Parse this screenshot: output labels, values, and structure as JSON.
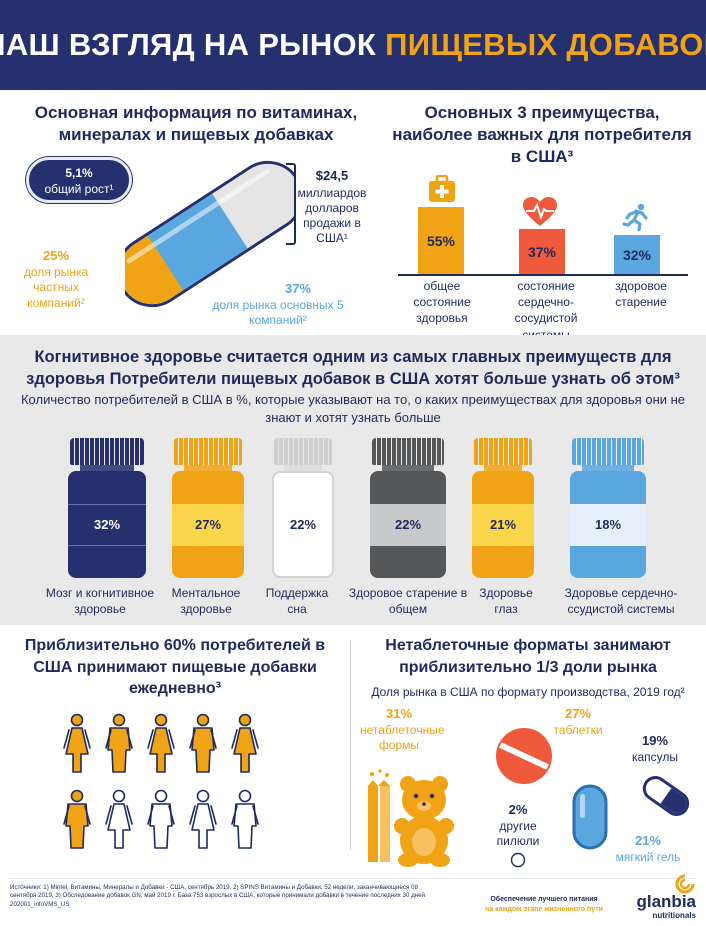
{
  "header": {
    "title_white": "НАШ ВЗГЛЯД НА РЫНОК",
    "title_orange": "ПИЩЕВЫХ ДОБАВОК"
  },
  "market_info": {
    "title": "Основная информация по витаминах, минералах и пищевых добавках",
    "growth": {
      "value": "5,1%",
      "label": "общий рост¹"
    },
    "sales": {
      "value": "$24,5",
      "label": "миллиардов долларов продажи в США¹"
    },
    "private_share": {
      "value": "25%",
      "label": "доля рынка частных компаний²",
      "fraction": 0.25
    },
    "top5_share": {
      "value": "37%",
      "label": "доля рынка основных 5 компаний²",
      "fraction": 0.37
    },
    "colors": {
      "orange": "#f0a315",
      "blue": "#5aa7df",
      "grey": "#e5e5e6",
      "navy": "#26306e"
    }
  },
  "top_benefits": {
    "title": "Основных 3 преимущества, наиболее важных для потребителя в США³",
    "items": [
      {
        "value": "55%",
        "pct": 55,
        "label": "общее состояние здоровья",
        "color": "#f0a315",
        "icon": "first-aid-kit-icon"
      },
      {
        "value": "37%",
        "pct": 37,
        "label": "состояние сердечно-сосудистой системы",
        "color": "#ef5a3c",
        "icon": "heart-pulse-icon"
      },
      {
        "value": "32%",
        "pct": 32,
        "label": "здоровое старение",
        "color": "#5aa7df",
        "icon": "runner-icon"
      }
    ]
  },
  "cognitive": {
    "title": "Когнитивное здоровье считается одним из самых главных преимуществ для здоровья Потребители пищевых добавок в США хотят больше узнать об этом³",
    "subtitle": "Количество потребителей в США в %, которые указывают на то, о каких преимуществах для здоровья они не знают и хотят узнать больше",
    "jars": [
      {
        "value": "32%",
        "label": "Мозг и когнитивное здоровье",
        "color": "#26306e",
        "cap": "#26306e"
      },
      {
        "value": "27%",
        "label": "Ментальное здоровье",
        "color": "#f0a315",
        "cap": "#f0a315"
      },
      {
        "value": "22%",
        "label": "Поддержка сна",
        "color": "#ffffff",
        "cap": "#d3d3d4"
      },
      {
        "value": "22%",
        "label": "Здоровое старение в общем",
        "color": "#545658",
        "cap": "#545658"
      },
      {
        "value": "21%",
        "label": "Здоровье глаз",
        "color": "#f0a315",
        "cap": "#f0a315"
      },
      {
        "value": "18%",
        "label": "Здоровье сердечно-ссудистой системы",
        "color": "#5aa7df",
        "cap": "#5aa7df"
      }
    ]
  },
  "daily": {
    "title": "Приблизительно 60% потребителей в США принимают пищевые добавки ежедневно³",
    "filled_fraction": 0.6,
    "total_people": 10
  },
  "formats": {
    "title": "Нетаблеточные форматы занимают приблизительно 1/3 доли рынка",
    "subtitle": "Доля рынка в США по формату производства, 2019 год²",
    "items": [
      {
        "value": "31%",
        "label": "нетаблеточные формы",
        "icon": "gummy-bear-icon"
      },
      {
        "value": "27%",
        "label": "таблетки",
        "icon": "tablet-icon"
      },
      {
        "value": "19%",
        "label": "капсулы",
        "icon": "capsule-icon"
      },
      {
        "value": "2%",
        "label": "другие пилюли",
        "icon": "circle-pill-icon"
      },
      {
        "value": "21%",
        "label": "мягкий гель",
        "icon": "softgel-icon"
      }
    ]
  },
  "footer": {
    "sources": "Источники: 1) Mintel, Витамины, Минералы и Добавки - США, сентябрь 2019, 2) SPINS Витамины и Добавки, 52 недели, заканчивающиеся 08 сентября 2019, 3) Обследование добавок GN, май 2019 г. База 753 взрослых в США, которые принимали добавки в течение последних 30 дней",
    "code": "202001_infoVMS_US",
    "tagline_1": "Обеспечение лучшего питания",
    "tagline_2": "на каждом этапе жизненного пути",
    "logo_name": "glanbia",
    "logo_sub": "nutritionals"
  }
}
